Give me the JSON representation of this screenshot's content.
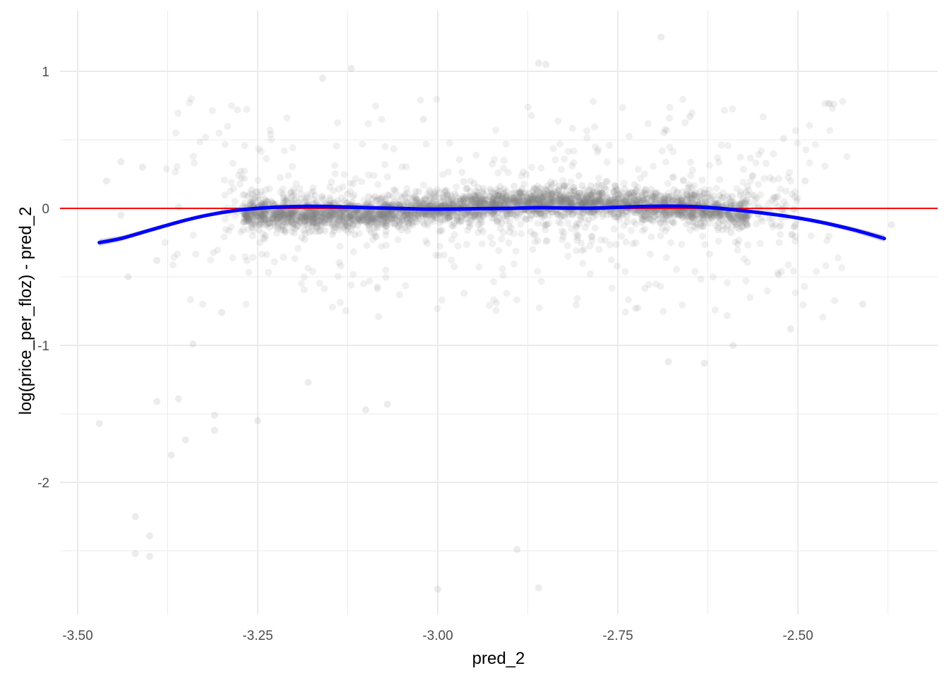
{
  "chart_data": {
    "type": "scatter",
    "title": "",
    "xlabel": "pred_2",
    "ylabel": "log(price_per_floz) - pred_2",
    "xlim": [
      -3.5,
      -2.37
    ],
    "ylim": [
      -2.9,
      1.4
    ],
    "x_ticks": [
      -3.5,
      -3.25,
      -3.0,
      -2.75,
      -2.5
    ],
    "x_tick_labels": [
      "-3.50",
      "-3.25",
      "-3.00",
      "-2.75",
      "-2.50"
    ],
    "y_ticks": [
      1,
      0,
      -1,
      -2
    ],
    "y_tick_labels": [
      "1",
      "0",
      "-1",
      "-2"
    ],
    "grid": true,
    "legend": "none",
    "colors": {
      "points": "#808080",
      "reference_line": "#ff0000",
      "smooth_line": "#0000ff",
      "smooth_band": "#cccccc",
      "grid": "#ebebeb"
    },
    "reference_line": {
      "y": 0
    },
    "smooth": {
      "x": [
        -3.47,
        -3.44,
        -3.4,
        -3.36,
        -3.32,
        -3.28,
        -3.25,
        -3.22,
        -3.18,
        -3.14,
        -3.1,
        -3.06,
        -3.02,
        -2.98,
        -2.94,
        -2.9,
        -2.86,
        -2.82,
        -2.78,
        -2.74,
        -2.7,
        -2.66,
        -2.62,
        -2.58,
        -2.54,
        -2.5,
        -2.46,
        -2.42,
        -2.38
      ],
      "y": [
        -0.25,
        -0.22,
        -0.16,
        -0.1,
        -0.05,
        -0.015,
        0.0,
        0.01,
        0.015,
        0.012,
        0.005,
        0.0,
        -0.005,
        -0.005,
        -0.002,
        0.0,
        0.005,
        0.002,
        0.002,
        0.01,
        0.015,
        0.015,
        0.005,
        -0.015,
        -0.04,
        -0.07,
        -0.11,
        -0.16,
        -0.22
      ],
      "band": [
        0.025,
        0.02,
        0.015,
        0.01,
        0.008,
        0.006,
        0.005,
        0.005,
        0.005,
        0.005,
        0.005,
        0.005,
        0.005,
        0.005,
        0.005,
        0.005,
        0.005,
        0.005,
        0.005,
        0.005,
        0.005,
        0.005,
        0.006,
        0.008,
        0.01,
        0.012,
        0.015,
        0.02,
        0.025
      ]
    },
    "outliers": [
      {
        "x": -3.47,
        "y": -1.57
      },
      {
        "x": -3.42,
        "y": -2.25
      },
      {
        "x": -3.4,
        "y": -2.39
      },
      {
        "x": -3.42,
        "y": -2.52
      },
      {
        "x": -3.4,
        "y": -2.54
      },
      {
        "x": -3.37,
        "y": -1.8
      },
      {
        "x": -3.36,
        "y": -1.39
      },
      {
        "x": -3.35,
        "y": -1.69
      },
      {
        "x": -3.25,
        "y": -1.55
      },
      {
        "x": -3.31,
        "y": -1.51
      },
      {
        "x": -3.31,
        "y": -1.62
      },
      {
        "x": -3.3,
        "y": -0.76
      },
      {
        "x": -3.34,
        "y": -0.99
      },
      {
        "x": -3.39,
        "y": -1.41
      },
      {
        "x": -3.18,
        "y": -1.27
      },
      {
        "x": -3.1,
        "y": -1.47
      },
      {
        "x": -3.07,
        "y": -1.43
      },
      {
        "x": -3.0,
        "y": -2.78
      },
      {
        "x": -2.89,
        "y": -2.49
      },
      {
        "x": -2.86,
        "y": -2.77
      },
      {
        "x": -2.69,
        "y": 1.25
      },
      {
        "x": -2.86,
        "y": 1.06
      },
      {
        "x": -2.85,
        "y": 1.05
      },
      {
        "x": -3.12,
        "y": 1.02
      },
      {
        "x": -3.16,
        "y": 0.95
      },
      {
        "x": -2.63,
        "y": -1.13
      },
      {
        "x": -2.59,
        "y": -1.0
      },
      {
        "x": -2.51,
        "y": -0.88
      },
      {
        "x": -2.68,
        "y": -1.12
      },
      {
        "x": -3.02,
        "y": 0.65
      },
      {
        "x": -2.65,
        "y": 0.67
      },
      {
        "x": -2.52,
        "y": 0.51
      },
      {
        "x": -2.49,
        "y": 0.2
      },
      {
        "x": -2.41,
        "y": -0.7
      },
      {
        "x": -2.37,
        "y": -0.12
      },
      {
        "x": -3.44,
        "y": -0.05
      },
      {
        "x": -3.44,
        "y": 0.34
      },
      {
        "x": -3.41,
        "y": 0.3
      },
      {
        "x": -3.46,
        "y": 0.2
      },
      {
        "x": -3.43,
        "y": -0.5
      },
      {
        "x": -3.36,
        "y": 0.01
      },
      {
        "x": -3.39,
        "y": -0.38
      }
    ]
  }
}
